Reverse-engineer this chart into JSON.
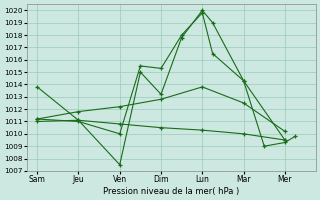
{
  "bg_color": "#cce8e0",
  "grid_color": "#99ccbb",
  "line_color": "#1a6b1a",
  "xlabel": "Pression niveau de la mer( hPa )",
  "ylim": [
    1007,
    1020.5
  ],
  "yticks": [
    1007,
    1008,
    1009,
    1010,
    1011,
    1012,
    1013,
    1014,
    1015,
    1016,
    1017,
    1018,
    1019,
    1020
  ],
  "xtick_labels": [
    "Sam",
    "Jeu",
    "Ven",
    "Dim",
    "Lun",
    "Mar",
    "Mer"
  ],
  "xtick_positions": [
    0,
    2,
    4,
    6,
    8,
    10,
    12
  ],
  "xlim": [
    -0.5,
    13.5
  ],
  "lines": [
    {
      "x": [
        0,
        2,
        4,
        5,
        6,
        7,
        8,
        8.5,
        10,
        11,
        12,
        12.5
      ],
      "y": [
        1013.8,
        1011.1,
        1007.5,
        1015.0,
        1013.2,
        1017.8,
        1020.0,
        1019.0,
        1014.3,
        1009.0,
        1009.3,
        1009.8
      ]
    },
    {
      "x": [
        0,
        2,
        4,
        5,
        6,
        7,
        8,
        8.5,
        10,
        12
      ],
      "y": [
        1011.2,
        1011.0,
        1010.0,
        1015.5,
        1015.3,
        1018.0,
        1019.8,
        1016.5,
        1014.3,
        1009.5
      ]
    },
    {
      "x": [
        0,
        2,
        4,
        6,
        8,
        10,
        12
      ],
      "y": [
        1011.2,
        1011.8,
        1012.2,
        1012.8,
        1013.8,
        1012.5,
        1010.2
      ]
    },
    {
      "x": [
        0,
        2,
        4,
        6,
        8,
        10,
        12
      ],
      "y": [
        1011.0,
        1011.1,
        1010.8,
        1010.5,
        1010.3,
        1010.0,
        1009.5
      ]
    }
  ]
}
